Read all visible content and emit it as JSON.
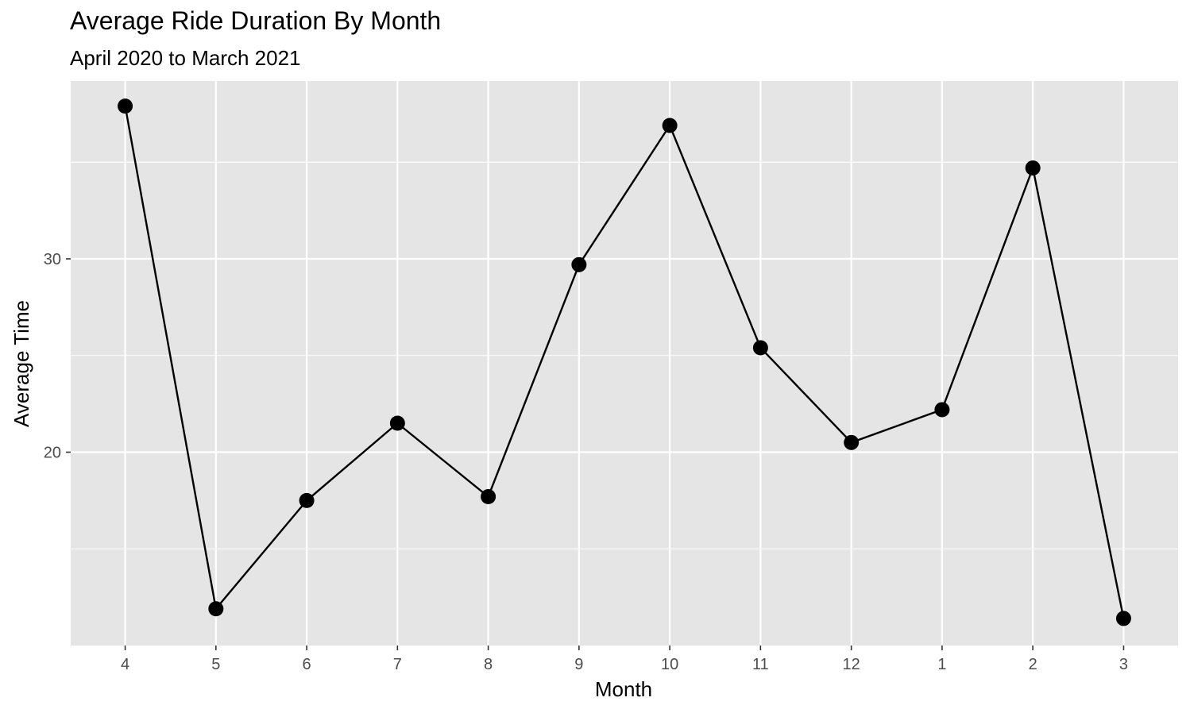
{
  "chart_data": {
    "type": "line",
    "title": "Average Ride Duration By Month",
    "subtitle": "April 2020 to March 2021",
    "xlabel": "Month",
    "ylabel": "Average Time",
    "categories": [
      "4",
      "5",
      "6",
      "7",
      "8",
      "9",
      "10",
      "11",
      "12",
      "1",
      "2",
      "3"
    ],
    "series": [
      {
        "values": [
          37.9,
          11.9,
          17.5,
          21.5,
          17.7,
          29.7,
          36.9,
          25.4,
          20.5,
          22.2,
          34.7,
          11.4
        ]
      }
    ],
    "yticks": [
      20,
      30
    ],
    "ylim": [
      10.0,
      39.2
    ],
    "grid": true,
    "legend": "none",
    "colors": {
      "panel": "#e5e5e5",
      "grid": "#ffffff",
      "line": "#000000",
      "point": "#000000"
    }
  }
}
